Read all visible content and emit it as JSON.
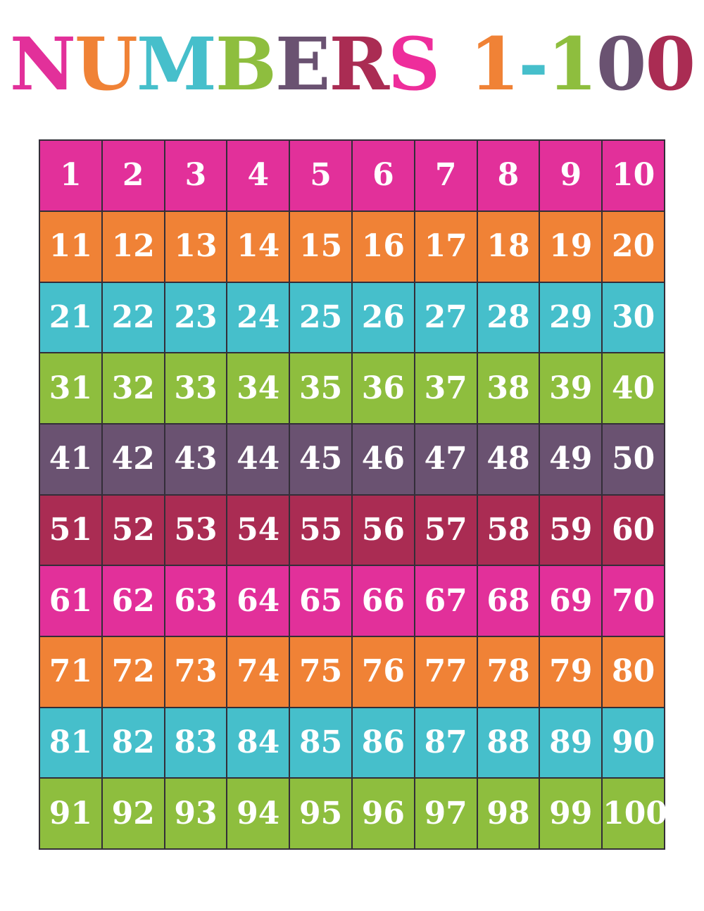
{
  "page": {
    "background_color": "#ffffff"
  },
  "palette": {
    "pink": "#e2309a",
    "orange": "#f08236",
    "teal": "#46bfcb",
    "green": "#8ebe3e",
    "plum": "#6a5271",
    "maroon": "#aa2c53",
    "grid_line": "#332e38",
    "number_text": "#ffffff"
  },
  "title": {
    "text": "NUMBERS 1-100",
    "letters": [
      {
        "char": "N",
        "color": "#e2309a"
      },
      {
        "char": "U",
        "color": "#f08236"
      },
      {
        "char": "M",
        "color": "#46bfcb"
      },
      {
        "char": "B",
        "color": "#8ebe3e"
      },
      {
        "char": "E",
        "color": "#6a5271"
      },
      {
        "char": "R",
        "color": "#aa2c53"
      },
      {
        "char": "S",
        "color": "#ee2d9b"
      },
      {
        "char": " ",
        "color": ""
      },
      {
        "char": "1",
        "color": "#f08236"
      },
      {
        "char": "-",
        "color": "#46bfcb"
      },
      {
        "char": "1",
        "color": "#8ebe3e"
      },
      {
        "char": "0",
        "color": "#6a5271"
      },
      {
        "char": "0",
        "color": "#aa2c53"
      }
    ]
  },
  "grid": {
    "rows_count": 10,
    "columns_count": 10,
    "rows": [
      {
        "color_name": "pink",
        "color": "#e2309a",
        "numbers": [
          "1",
          "2",
          "3",
          "4",
          "5",
          "6",
          "7",
          "8",
          "9",
          "10"
        ]
      },
      {
        "color_name": "orange",
        "color": "#f08236",
        "numbers": [
          "11",
          "12",
          "13",
          "14",
          "15",
          "16",
          "17",
          "18",
          "19",
          "20"
        ]
      },
      {
        "color_name": "teal",
        "color": "#46bfcb",
        "numbers": [
          "21",
          "22",
          "23",
          "24",
          "25",
          "26",
          "27",
          "28",
          "29",
          "30"
        ]
      },
      {
        "color_name": "green",
        "color": "#8ebe3e",
        "numbers": [
          "31",
          "32",
          "33",
          "34",
          "35",
          "36",
          "37",
          "38",
          "39",
          "40"
        ]
      },
      {
        "color_name": "plum",
        "color": "#6a5271",
        "numbers": [
          "41",
          "42",
          "43",
          "44",
          "45",
          "46",
          "47",
          "48",
          "49",
          "50"
        ]
      },
      {
        "color_name": "maroon",
        "color": "#aa2c53",
        "numbers": [
          "51",
          "52",
          "53",
          "54",
          "55",
          "56",
          "57",
          "58",
          "59",
          "60"
        ]
      },
      {
        "color_name": "pink",
        "color": "#e2309a",
        "numbers": [
          "61",
          "62",
          "63",
          "64",
          "65",
          "66",
          "67",
          "68",
          "69",
          "70"
        ]
      },
      {
        "color_name": "orange",
        "color": "#f08236",
        "numbers": [
          "71",
          "72",
          "73",
          "74",
          "75",
          "76",
          "77",
          "78",
          "79",
          "80"
        ]
      },
      {
        "color_name": "teal",
        "color": "#46bfcb",
        "numbers": [
          "81",
          "82",
          "83",
          "84",
          "85",
          "86",
          "87",
          "88",
          "89",
          "90"
        ]
      },
      {
        "color_name": "green",
        "color": "#8ebe3e",
        "numbers": [
          "91",
          "92",
          "93",
          "94",
          "95",
          "96",
          "97",
          "98",
          "99",
          "100"
        ]
      }
    ]
  }
}
